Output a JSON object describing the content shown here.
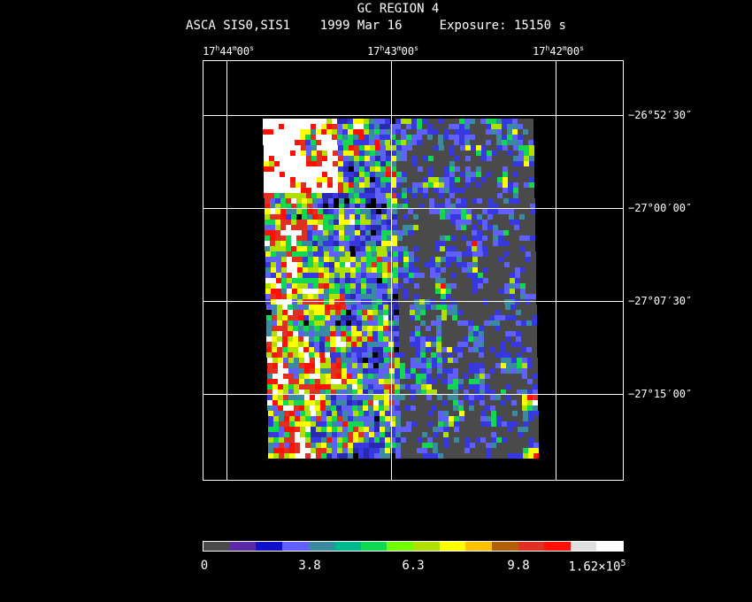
{
  "title": "GC REGION 4",
  "subtitle": {
    "instrument": "ASCA SIS0,SIS1",
    "date": "1999 Mar 16",
    "exposure": "Exposure: 15150 s"
  },
  "ra_labels": [
    {
      "h": "17",
      "m": "44",
      "s": "00"
    },
    {
      "h": "17",
      "m": "43",
      "s": "00"
    },
    {
      "h": "17",
      "m": "42",
      "s": "00"
    }
  ],
  "dec_labels": [
    "−26°52′30″",
    "−27°00′00″",
    "−27°07′30″",
    "−27°15′00″"
  ],
  "colorbar": {
    "colors": [
      "#4a4a4a",
      "#5a2aa8",
      "#1010c8",
      "#6060ff",
      "#3a8aa0",
      "#00b890",
      "#10d850",
      "#70ff00",
      "#b0e000",
      "#ffff00",
      "#ffc000",
      "#b06000",
      "#e03020",
      "#ff1000",
      "#e0e0e0",
      "#ffffff"
    ],
    "labels": [
      "0",
      "3.8",
      "6.3",
      "9.8"
    ],
    "max_label_base": "1.62×10",
    "max_label_exp": "5"
  }
}
